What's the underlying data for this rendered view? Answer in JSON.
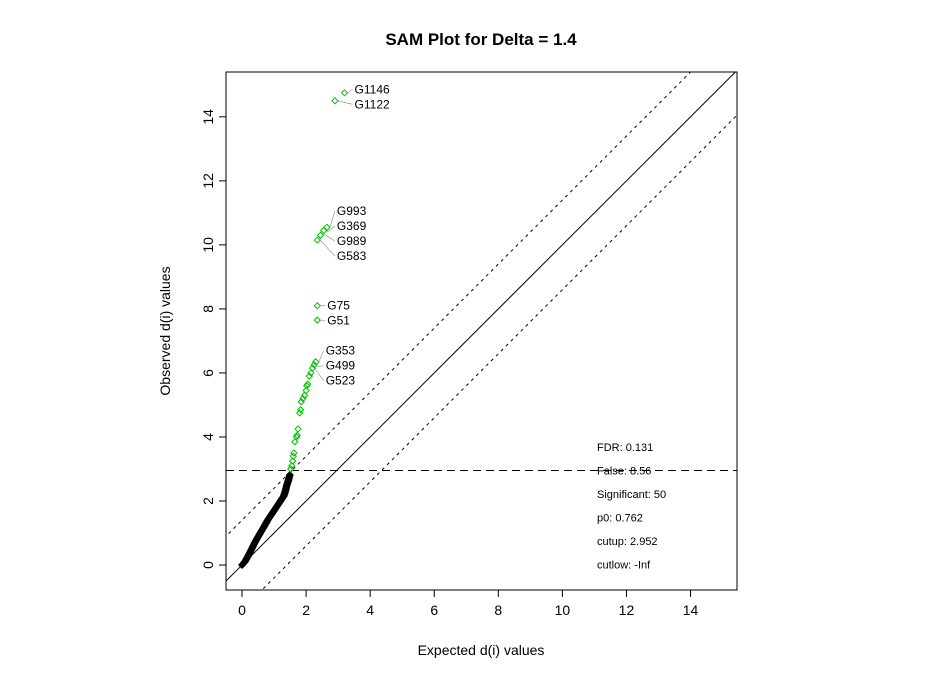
{
  "chart_data": {
    "type": "scatter",
    "title": "SAM Plot for Delta = 1.4",
    "xlabel": "Expected d(i) values",
    "ylabel": "Observed d(i) values",
    "xlim": [
      -0.5,
      15.45
    ],
    "ylim": [
      -0.78,
      15.4
    ],
    "xticks": [
      0,
      2,
      4,
      6,
      8,
      10,
      12,
      14
    ],
    "yticks": [
      0,
      2,
      4,
      6,
      8,
      10,
      12,
      14
    ],
    "grid": false,
    "delta": 1.4,
    "cutup": 2.952,
    "colors": {
      "significant": "#00c000",
      "nonsignificant": "#000000"
    },
    "nonsignificant_curve": {
      "x": [
        0.0,
        0.1,
        0.2,
        0.3,
        0.4,
        0.5,
        0.6,
        0.7,
        0.8,
        0.9,
        1.0,
        1.1,
        1.2,
        1.3,
        1.35,
        1.4,
        1.45,
        1.5
      ],
      "y": [
        0.0,
        0.12,
        0.3,
        0.5,
        0.7,
        0.88,
        1.05,
        1.22,
        1.4,
        1.55,
        1.7,
        1.85,
        2.0,
        2.15,
        2.3,
        2.5,
        2.65,
        2.85
      ]
    },
    "significant_points": {
      "x": [
        1.52,
        1.55,
        1.58,
        1.6,
        1.62,
        1.65,
        1.7,
        1.72,
        1.75,
        1.8,
        1.83,
        1.85,
        1.9,
        1.95,
        2.0,
        2.02,
        2.05,
        2.1,
        2.15,
        2.2,
        2.25,
        2.3,
        2.35,
        2.35,
        2.35,
        2.45,
        2.55,
        2.65,
        2.9,
        3.2
      ],
      "y": [
        3.0,
        3.1,
        3.25,
        3.4,
        3.5,
        3.85,
        4.0,
        4.05,
        4.25,
        4.75,
        4.85,
        5.1,
        5.2,
        5.3,
        5.45,
        5.6,
        5.65,
        5.9,
        6.0,
        6.15,
        6.25,
        6.35,
        7.65,
        8.1,
        10.15,
        10.3,
        10.45,
        10.55,
        14.5,
        14.75
      ]
    },
    "point_labels": [
      {
        "text": "G1146",
        "x": 3.2,
        "y": 14.75
      },
      {
        "text": "G1122",
        "x": 2.9,
        "y": 14.5
      },
      {
        "text": "G993",
        "x": 2.65,
        "y": 10.55
      },
      {
        "text": "G369",
        "x": 2.55,
        "y": 10.4
      },
      {
        "text": "G989",
        "x": 2.45,
        "y": 10.35
      },
      {
        "text": "G583",
        "x": 2.35,
        "y": 10.15
      },
      {
        "text": "G75",
        "x": 2.35,
        "y": 8.1
      },
      {
        "text": "G51",
        "x": 2.35,
        "y": 7.65
      },
      {
        "text": "G353",
        "x": 2.3,
        "y": 6.35
      },
      {
        "text": "G499",
        "x": 2.25,
        "y": 6.2
      },
      {
        "text": "G523",
        "x": 2.2,
        "y": 6.1
      }
    ],
    "stats": [
      "FDR:  0.131",
      "False:  8.56",
      "Significant:  50",
      "p0:  0.762",
      "cutup:  2.952",
      "cutlow:  -Inf"
    ]
  }
}
